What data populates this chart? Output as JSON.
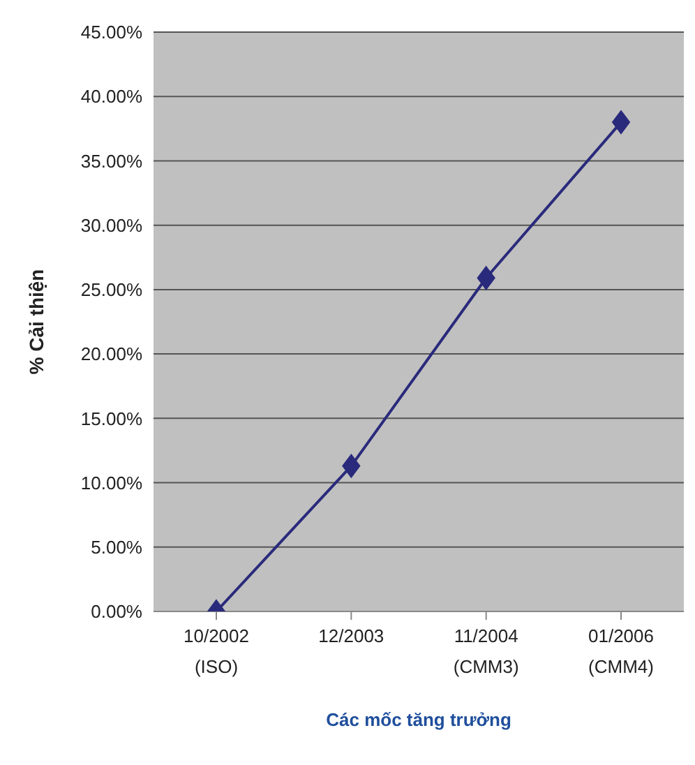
{
  "chart_data": {
    "type": "line",
    "xlabel": "Các mốc tăng trưởng",
    "ylabel": "% Cải thiện",
    "categories": [
      "10/2002 (ISO)",
      "12/2003",
      "11/2004 (CMM3)",
      "01/2006 (CMM4)"
    ],
    "values": [
      0,
      11.3,
      25.9,
      38.0
    ],
    "color": "#2a2a7c",
    "marker": "diamond",
    "grid": "y",
    "legend": false,
    "ylim": [
      0,
      45
    ],
    "yticks": [
      {
        "value": 0,
        "label": "0.00%"
      },
      {
        "value": 5,
        "label": "5.00%"
      },
      {
        "value": 10,
        "label": "10.00%"
      },
      {
        "value": 15,
        "label": "15.00%"
      },
      {
        "value": 20,
        "label": "20.00%"
      },
      {
        "value": 25,
        "label": "25.00%"
      },
      {
        "value": 30,
        "label": "30.00%"
      },
      {
        "value": 35,
        "label": "35.00%"
      },
      {
        "value": 40,
        "label": "40.00%"
      },
      {
        "value": 45,
        "label": "45.00%"
      }
    ]
  }
}
